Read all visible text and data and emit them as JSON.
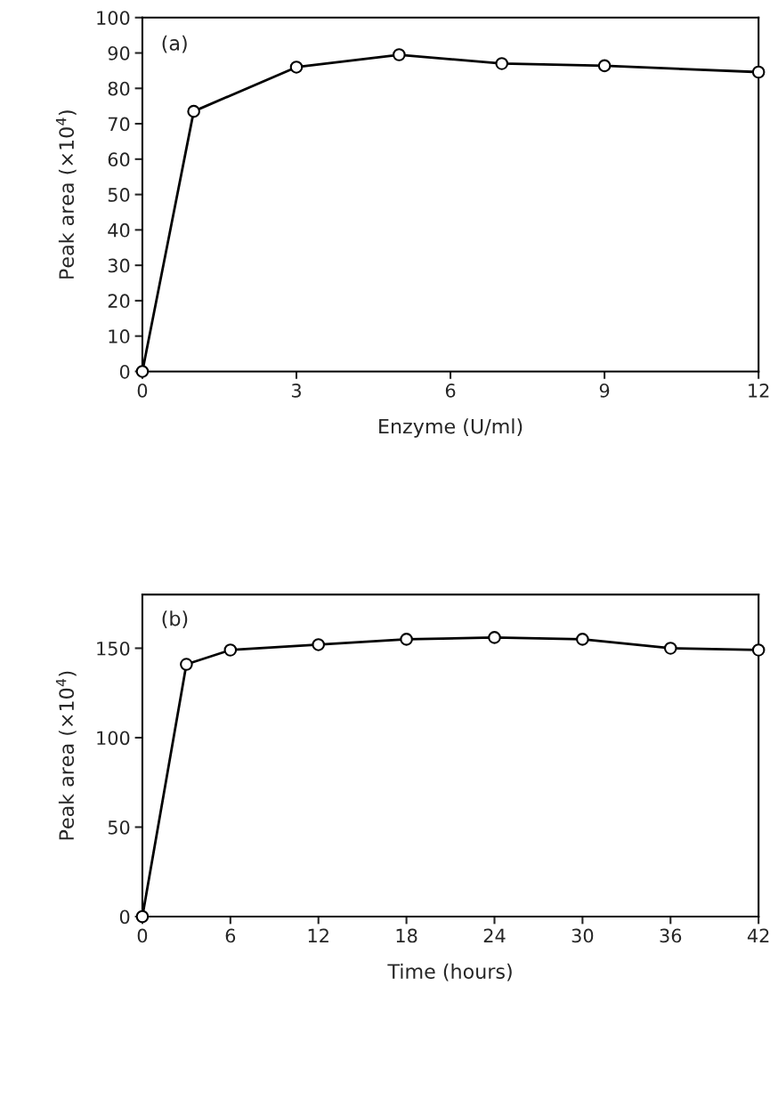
{
  "chart_data": [
    {
      "type": "line",
      "xlabel": "Enzyme (U/ml)",
      "ylabel": "Peak area (×10$^{4}$)",
      "annotations": [
        "(a)"
      ],
      "x": [
        0,
        1,
        3,
        5,
        7,
        9,
        12
      ],
      "series": [
        {
          "color": "#000000",
          "values": [
            0,
            73.5,
            86,
            89.5,
            87,
            86.4,
            84.6
          ]
        }
      ],
      "xlim": [
        0,
        12
      ],
      "xticks": [
        0,
        3,
        6,
        9,
        12
      ],
      "ylim": [
        0,
        100
      ],
      "yticks": [
        0,
        10,
        20,
        30,
        40,
        50,
        60,
        70,
        80,
        90,
        100
      ],
      "marker": "circle",
      "line_style": "solid",
      "grid": false,
      "legend": false
    },
    {
      "type": "line",
      "xlabel": "Time (hours)",
      "ylabel": "Peak area (×10$^{4}$)",
      "annotations": [
        "(b)"
      ],
      "x": [
        0,
        3,
        6,
        12,
        18,
        24,
        30,
        36,
        42
      ],
      "series": [
        {
          "color": "#000000",
          "values": [
            0,
            141,
            149,
            152,
            155,
            156,
            155,
            150,
            149
          ]
        }
      ],
      "xlim": [
        0,
        42
      ],
      "xticks": [
        0,
        6,
        12,
        18,
        24,
        30,
        36,
        42
      ],
      "ylim": [
        0,
        180
      ],
      "yticks": [
        0,
        50,
        100,
        150
      ],
      "marker": "circle",
      "line_style": "solid",
      "grid": false,
      "legend": false
    }
  ]
}
